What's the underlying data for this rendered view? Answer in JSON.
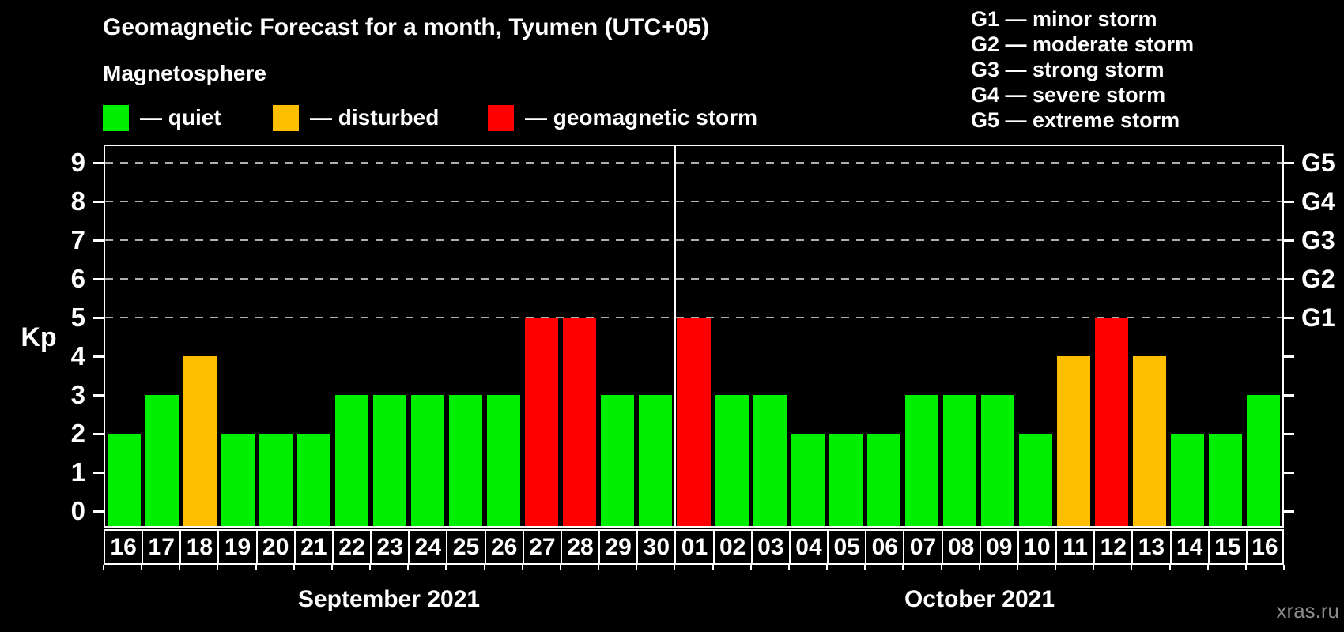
{
  "title": "Geomagnetic Forecast for a month, Tyumen (UTC+05)",
  "subtitle": "Magnetosphere",
  "watermark": "xras.ru",
  "legend": {
    "items": [
      {
        "key": "quiet",
        "label": "— quiet",
        "color": "#00ee00"
      },
      {
        "key": "disturbed",
        "label": "— disturbed",
        "color": "#ffbe00"
      },
      {
        "key": "storm",
        "label": "— geomagnetic storm",
        "color": "#ff0000"
      }
    ]
  },
  "g_scale_legend": {
    "items": [
      "G1 — minor storm",
      "G2 — moderate storm",
      "G3 — strong storm",
      "G4 — severe storm",
      "G5 — extreme storm"
    ]
  },
  "chart_data": {
    "type": "bar",
    "title": "Geomagnetic Forecast for a month, Tyumen (UTC+05)",
    "ylabel": "Kp",
    "ylim": [
      0,
      9
    ],
    "yticks": [
      0,
      1,
      2,
      3,
      4,
      5,
      6,
      7,
      8,
      9
    ],
    "gridlines_at": [
      5,
      6,
      7,
      8,
      9
    ],
    "grid_style": "dashed",
    "legend_position": "top",
    "right_axis": [
      {
        "value": 5,
        "label": "G1"
      },
      {
        "value": 6,
        "label": "G2"
      },
      {
        "value": 7,
        "label": "G3"
      },
      {
        "value": 8,
        "label": "G4"
      },
      {
        "value": 9,
        "label": "G5"
      }
    ],
    "bar_colors": {
      "quiet": "#00ee00",
      "disturbed": "#ffbe00",
      "storm": "#ff0000"
    },
    "months": [
      {
        "label": "September 2021",
        "days": [
          {
            "day": "16",
            "kp": 2,
            "status": "quiet"
          },
          {
            "day": "17",
            "kp": 3,
            "status": "quiet"
          },
          {
            "day": "18",
            "kp": 4,
            "status": "disturbed"
          },
          {
            "day": "19",
            "kp": 2,
            "status": "quiet"
          },
          {
            "day": "20",
            "kp": 2,
            "status": "quiet"
          },
          {
            "day": "21",
            "kp": 2,
            "status": "quiet"
          },
          {
            "day": "22",
            "kp": 3,
            "status": "quiet"
          },
          {
            "day": "23",
            "kp": 3,
            "status": "quiet"
          },
          {
            "day": "24",
            "kp": 3,
            "status": "quiet"
          },
          {
            "day": "25",
            "kp": 3,
            "status": "quiet"
          },
          {
            "day": "26",
            "kp": 3,
            "status": "quiet"
          },
          {
            "day": "27",
            "kp": 5,
            "status": "storm"
          },
          {
            "day": "28",
            "kp": 5,
            "status": "storm"
          },
          {
            "day": "29",
            "kp": 3,
            "status": "quiet"
          },
          {
            "day": "30",
            "kp": 3,
            "status": "quiet"
          }
        ]
      },
      {
        "label": "October 2021",
        "days": [
          {
            "day": "01",
            "kp": 5,
            "status": "storm"
          },
          {
            "day": "02",
            "kp": 3,
            "status": "quiet"
          },
          {
            "day": "03",
            "kp": 3,
            "status": "quiet"
          },
          {
            "day": "04",
            "kp": 2,
            "status": "quiet"
          },
          {
            "day": "05",
            "kp": 2,
            "status": "quiet"
          },
          {
            "day": "06",
            "kp": 2,
            "status": "quiet"
          },
          {
            "day": "07",
            "kp": 3,
            "status": "quiet"
          },
          {
            "day": "08",
            "kp": 3,
            "status": "quiet"
          },
          {
            "day": "09",
            "kp": 3,
            "status": "quiet"
          },
          {
            "day": "10",
            "kp": 2,
            "status": "quiet"
          },
          {
            "day": "11",
            "kp": 4,
            "status": "disturbed"
          },
          {
            "day": "12",
            "kp": 5,
            "status": "storm"
          },
          {
            "day": "13",
            "kp": 4,
            "status": "disturbed"
          },
          {
            "day": "14",
            "kp": 2,
            "status": "quiet"
          },
          {
            "day": "15",
            "kp": 2,
            "status": "quiet"
          },
          {
            "day": "16",
            "kp": 3,
            "status": "quiet"
          }
        ]
      }
    ]
  }
}
